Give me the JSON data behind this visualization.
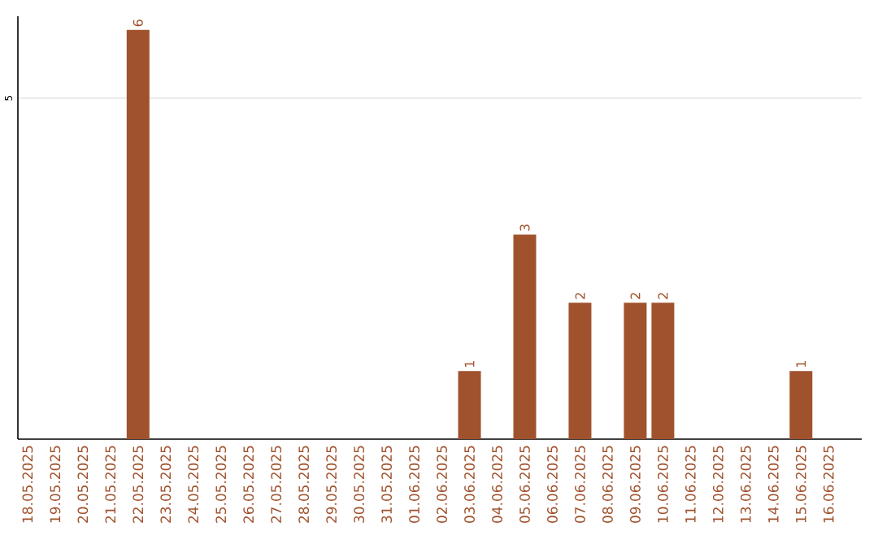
{
  "chart_data": {
    "type": "bar",
    "categories": [
      "18.05.2025",
      "19.05.2025",
      "20.05.2025",
      "21.05.2025",
      "22.05.2025",
      "23.05.2025",
      "24.05.2025",
      "25.05.2025",
      "26.05.2025",
      "27.05.2025",
      "28.05.2025",
      "29.05.2025",
      "30.05.2025",
      "31.05.2025",
      "01.06.2025",
      "02.06.2025",
      "03.06.2025",
      "04.06.2025",
      "05.06.2025",
      "06.06.2025",
      "07.06.2025",
      "08.06.2025",
      "09.06.2025",
      "10.06.2025",
      "11.06.2025",
      "12.06.2025",
      "13.06.2025",
      "14.06.2025",
      "15.06.2025",
      "16.06.2025"
    ],
    "values": [
      null,
      null,
      null,
      null,
      6,
      null,
      null,
      null,
      null,
      null,
      null,
      null,
      null,
      null,
      null,
      null,
      1,
      null,
      3,
      null,
      2,
      null,
      2,
      2,
      null,
      null,
      null,
      null,
      1,
      null
    ],
    "color": "#a0522d",
    "ylim": [
      0,
      6.2
    ],
    "yticks": [
      5
    ],
    "grid": "y",
    "data_labels": true
  }
}
